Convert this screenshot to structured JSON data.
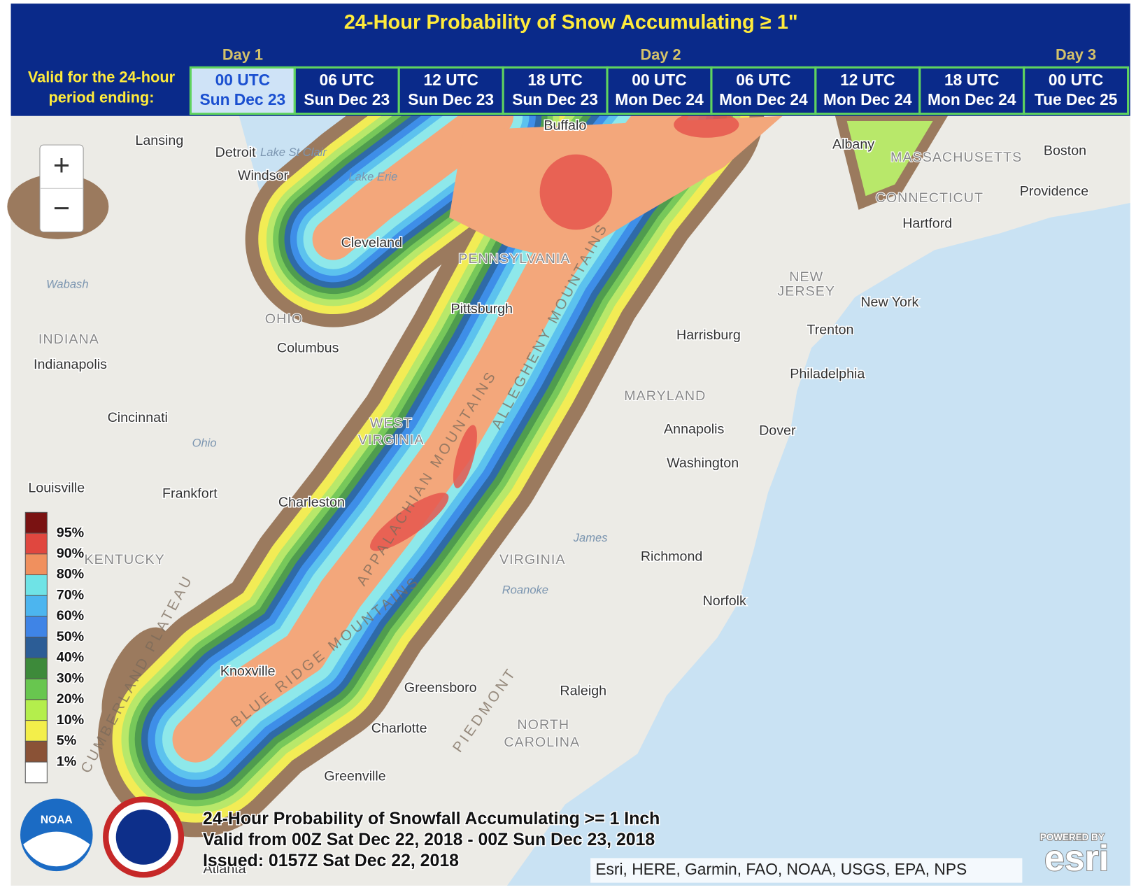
{
  "header": {
    "title": "24-Hour Probability of Snow Accumulating ≥ 1\"",
    "days": [
      "Day 1",
      "Day 2",
      "Day 3"
    ],
    "valid_label": [
      "Valid for the 24-hour",
      "period ending:"
    ],
    "tabs": [
      [
        "00 UTC",
        "Sun Dec 23"
      ],
      [
        "06 UTC",
        "Sun Dec 23"
      ],
      [
        "12 UTC",
        "Sun Dec 23"
      ],
      [
        "18 UTC",
        "Sun Dec 23"
      ],
      [
        "00 UTC",
        "Mon Dec 24"
      ],
      [
        "06 UTC",
        "Mon Dec 24"
      ],
      [
        "12 UTC",
        "Mon Dec 24"
      ],
      [
        "18 UTC",
        "Mon Dec 24"
      ],
      [
        "00 UTC",
        "Tue Dec 25"
      ]
    ]
  },
  "zoom": {
    "in": "+",
    "out": "−"
  },
  "map": {
    "labels": [
      "Lansing",
      "Detroit",
      "Lake St Clair",
      "Windsor",
      "Lake Erie",
      "Buffalo",
      "Albany",
      "MASSACHUSETTS",
      "Boston",
      "Providence",
      "CONNECTICUT",
      "Hartford",
      "Cleveland",
      "PENNSYLVANIA",
      "Wabash",
      "NEW",
      "JERSEY",
      "New York",
      "OHIO",
      "Pittsburgh",
      "INDIANA",
      "Harrisburg",
      "Trenton",
      "Columbus",
      "Indianapolis",
      "Philadelphia",
      "MARYLAND",
      "Cincinnati",
      "WEST",
      "VIRGINIA",
      "Ohio",
      "Annapolis",
      "Dover",
      "Washington",
      "Louisville",
      "Frankfort",
      "Charleston",
      "KENTUCKY",
      "James",
      "VIRGINIA",
      "Richmond",
      "Roanoke",
      "Norfolk",
      "Knoxville",
      "Greensboro",
      "Raleigh",
      "NORTH",
      "CAROLINA",
      "Charlotte",
      "Greenville",
      "Atlanta",
      "ALLEGHENY MOUNTAINS",
      "APPALACHIAN MOUNTAINS",
      "BLUE RIDGE MOUNTAINS",
      "PIEDMONT",
      "CUMBERLAND PLATEAU"
    ]
  },
  "legend": {
    "labels": [
      "95%",
      "90%",
      "80%",
      "70%",
      "60%",
      "50%",
      "40%",
      "30%",
      "20%",
      "10%",
      "5%",
      "1%"
    ]
  },
  "footer": {
    "lines": [
      "24-Hour Probability of Snowfall Accumulating >= 1 Inch",
      "Valid from 00Z Sat Dec 22, 2018 - 00Z Sun Dec 23, 2018",
      "Issued: 0157Z Sat Dec 22, 2018"
    ]
  },
  "logos": {
    "noaa": "NOAA"
  },
  "attribution": "Esri, HERE, Garmin, FAO, NOAA, USGS, EPA, NPS",
  "esri": {
    "powered": "POWERED BY",
    "logo": "esri"
  }
}
